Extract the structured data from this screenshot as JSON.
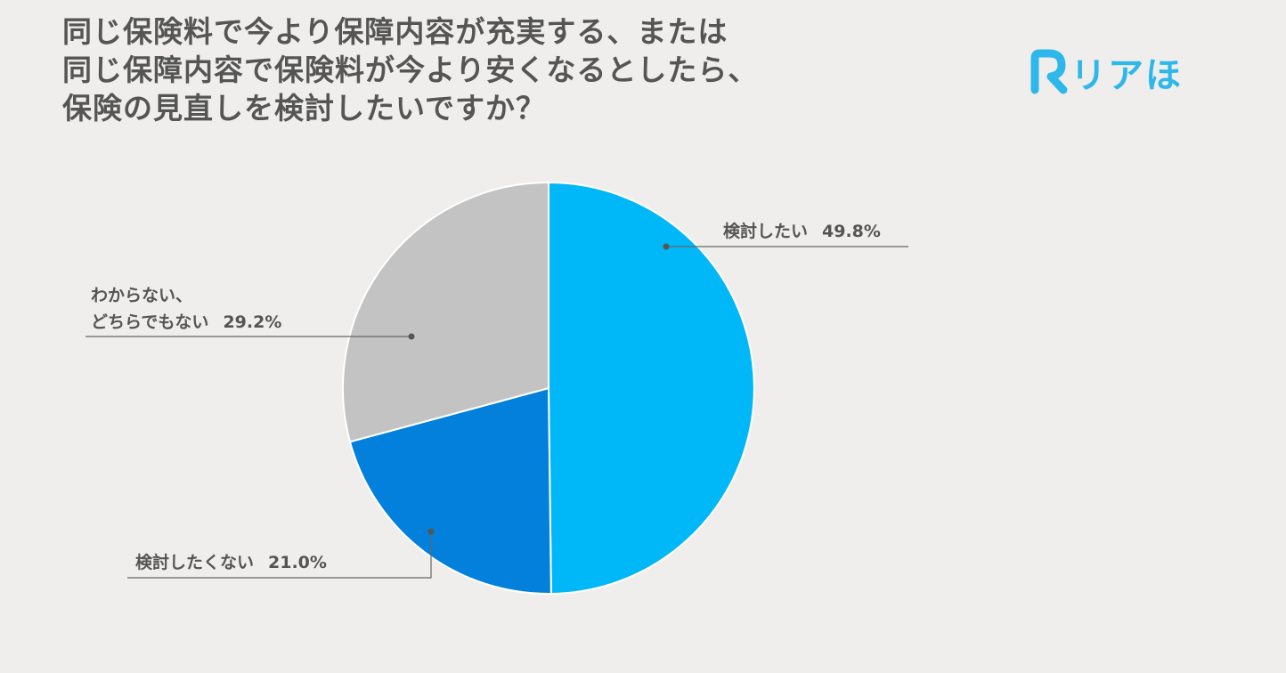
{
  "title_lines": [
    "同じ保険料で今より保障内容が充実する、または",
    "同じ保障内容で保険料が今より安くなるとしたら、",
    "保険の見直しを検討したいですか？"
  ],
  "logo": {
    "mark": "R",
    "text": "リアほ",
    "color": "#2db7ea"
  },
  "chart_data": {
    "type": "pie",
    "title": "同じ保険料で今より保障内容が充実する、または同じ保障内容で保険料が今より安くなるとしたら、保険の見直しを検討したいですか？",
    "start": "12 o'clock",
    "direction": "clockwise",
    "slices": [
      {
        "label": "検討したい",
        "value": 49.8,
        "value_text": "49.8%",
        "color": "#00b7f8"
      },
      {
        "label": "検討したくない",
        "value": 21.0,
        "value_text": "21.0%",
        "color": "#0280db"
      },
      {
        "label": "わからない、どちらでもない",
        "label_lines": [
          "わからない、",
          "どちらでもない"
        ],
        "value": 29.2,
        "value_text": "29.2%",
        "color": "#c3c3c3"
      }
    ]
  }
}
